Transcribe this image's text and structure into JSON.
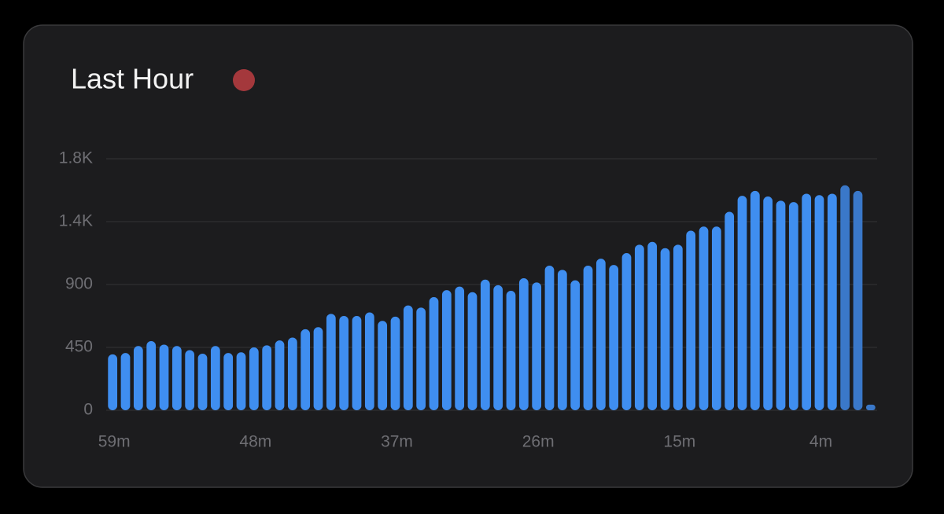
{
  "chart_data": {
    "type": "bar",
    "title": "Last Hour",
    "categories": [
      "59m",
      null,
      null,
      null,
      null,
      null,
      null,
      null,
      null,
      null,
      null,
      "48m",
      null,
      null,
      null,
      null,
      null,
      null,
      null,
      null,
      null,
      null,
      "37m",
      null,
      null,
      null,
      null,
      null,
      null,
      null,
      null,
      null,
      null,
      "26m",
      null,
      null,
      null,
      null,
      null,
      null,
      null,
      null,
      null,
      null,
      "15m",
      null,
      null,
      null,
      null,
      null,
      null,
      null,
      null,
      null,
      null,
      "4m",
      null,
      null,
      null,
      null
    ],
    "values": [
      400,
      410,
      460,
      495,
      470,
      460,
      430,
      405,
      460,
      410,
      415,
      450,
      465,
      500,
      520,
      580,
      595,
      690,
      675,
      675,
      700,
      640,
      670,
      750,
      735,
      810,
      860,
      885,
      845,
      935,
      895,
      855,
      945,
      915,
      1035,
      1005,
      930,
      1035,
      1085,
      1040,
      1125,
      1185,
      1205,
      1160,
      1185,
      1285,
      1315,
      1315,
      1420,
      1535,
      1570,
      1530,
      1500,
      1490,
      1550,
      1540,
      1550,
      1610,
      1570,
      40
    ],
    "color": "#3f8ef0",
    "bar_colors": [
      "#3f8ef0",
      "#3f8ef0",
      "#3f8ef0",
      "#3f8ef0",
      "#3f8ef0",
      "#3f8ef0",
      "#3f8ef0",
      "#3f8ef0",
      "#3f8ef0",
      "#3f8ef0",
      "#3f8ef0",
      "#3f8ef0",
      "#3f8ef0",
      "#3f8ef0",
      "#3f8ef0",
      "#3f8ef0",
      "#3f8ef0",
      "#3f8ef0",
      "#3f8ef0",
      "#3f8ef0",
      "#3f8ef0",
      "#3f8ef0",
      "#3f8ef0",
      "#3f8ef0",
      "#3f8ef0",
      "#3f8ef0",
      "#3f8ef0",
      "#3f8ef0",
      "#3f8ef0",
      "#3f8ef0",
      "#3f8ef0",
      "#3f8ef0",
      "#3f8ef0",
      "#3f8ef0",
      "#3f8ef0",
      "#3f8ef0",
      "#3f8ef0",
      "#3f8ef0",
      "#3f8ef0",
      "#3f8ef0",
      "#3f8ef0",
      "#3f8ef0",
      "#3f8ef0",
      "#3f8ef0",
      "#3f8ef0",
      "#3f8ef0",
      "#3f8ef0",
      "#3f8ef0",
      "#3f8ef0",
      "#3f8ef0",
      "#3f8ef0",
      "#3f8ef0",
      "#3f8ef0",
      "#3f8ef0",
      "#3f8ef0",
      "#3f8ef0",
      "#3f8ef0",
      "#3a78c9",
      "#3a78c9",
      "#3a78c9"
    ],
    "ylim": [
      0,
      1800
    ],
    "yticks": [
      0,
      450,
      900,
      {
        "value": 1350,
        "label": "1.4K"
      },
      {
        "value": 1800,
        "label": "1.8K"
      }
    ],
    "grid": true
  }
}
